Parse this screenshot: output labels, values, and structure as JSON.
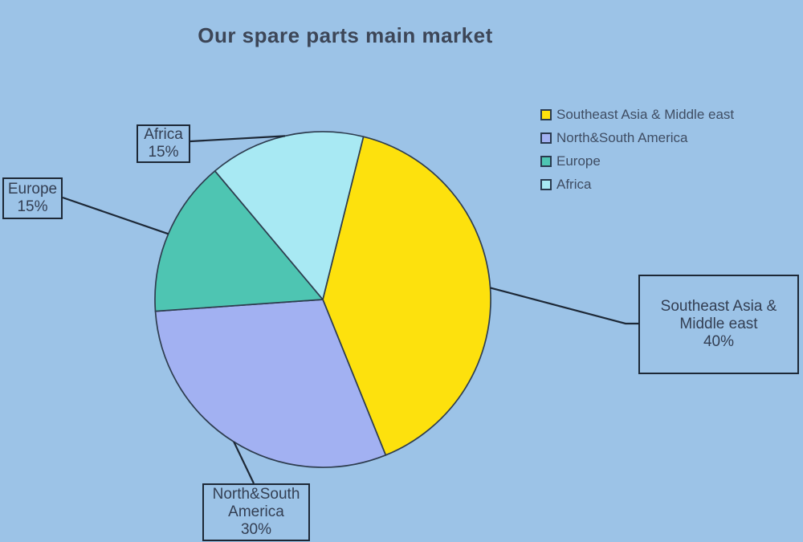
{
  "title": "Our spare parts main market",
  "background_color": "#9cc3e7",
  "chart_data": {
    "type": "pie",
    "title": "Our spare parts main market",
    "categories": [
      "Southeast Asia & Middle east",
      "North&South America",
      "Europe",
      "Africa"
    ],
    "values": [
      40,
      30,
      15,
      15
    ],
    "slices": [
      {
        "label": "Southeast Asia & Middle east",
        "value": 40,
        "pct_label": "40%",
        "color": "#fde10d"
      },
      {
        "label": "North&South America",
        "value": 30,
        "pct_label": "30%",
        "color": "#a2b1f2"
      },
      {
        "label": "Europe",
        "value": 15,
        "pct_label": "15%",
        "color": "#4ec5b2"
      },
      {
        "label": "Africa",
        "value": 15,
        "pct_label": "15%",
        "color": "#a8e9f3"
      }
    ],
    "start_angle_clockwise_from_top_deg": 14,
    "outline_color": "#2e3d4f",
    "leader_line_color": "#1d2836",
    "legend_position": "top-right",
    "grid": false
  },
  "legend": {
    "items": [
      {
        "label": "Southeast Asia & Middle east"
      },
      {
        "label": "North&South America"
      },
      {
        "label": "Europe"
      },
      {
        "label": "Africa"
      }
    ]
  },
  "callouts": [
    {
      "name": "Southeast Asia & Middle east",
      "pct": "40%"
    },
    {
      "name": "North&South America",
      "pct": "30%"
    },
    {
      "name": "Europe",
      "pct": "15%"
    },
    {
      "name": "Africa",
      "pct": "15%"
    }
  ]
}
